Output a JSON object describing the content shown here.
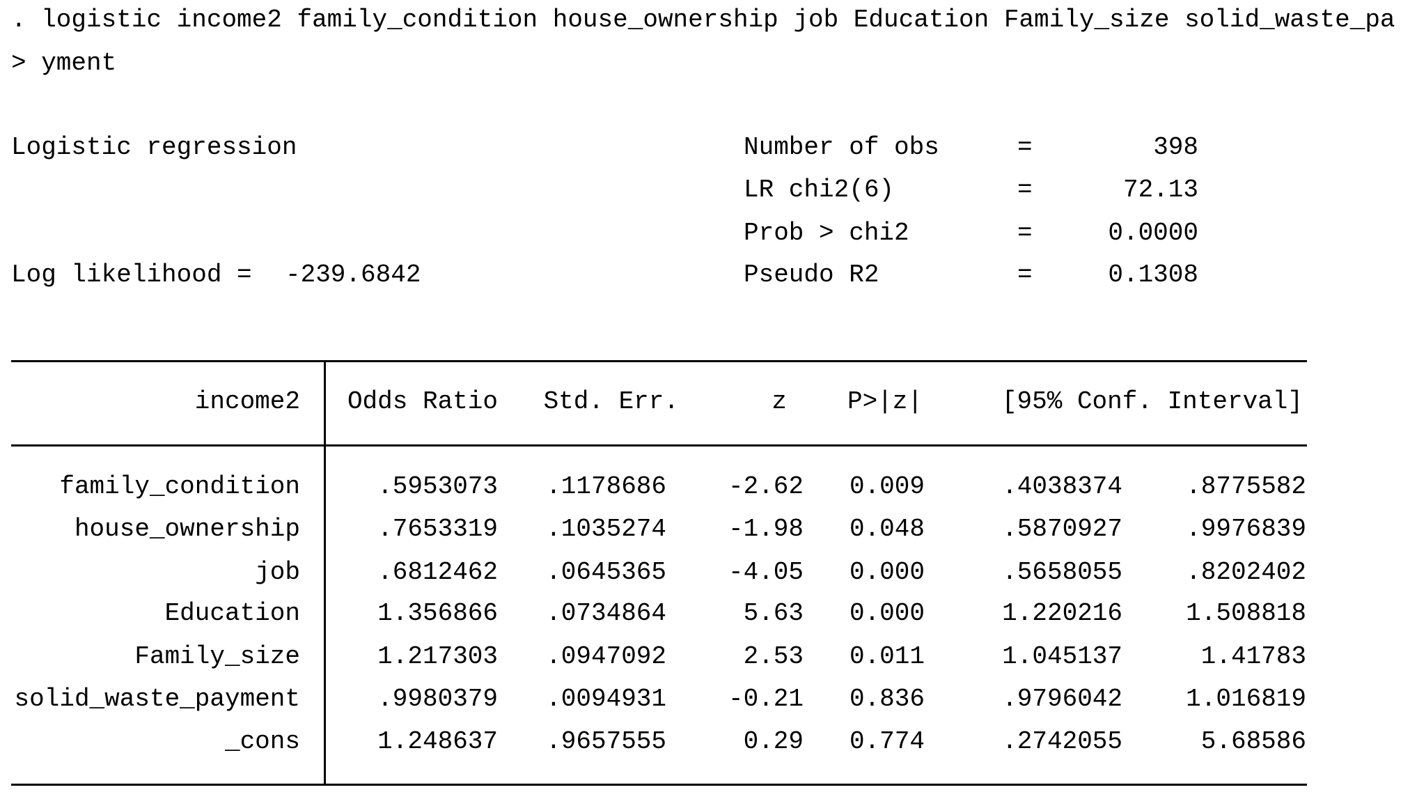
{
  "command": [
    ". logistic income2 family_condition house_ownership job Education Family_size solid_waste_pa",
    "> yment"
  ],
  "model_title": "Logistic regression",
  "log_likelihood": {
    "label": "Log likelihood =",
    "value": "-239.6842"
  },
  "stats": [
    {
      "label": "Number of obs",
      "eq": "=",
      "value": "398"
    },
    {
      "label": "LR chi2(6)",
      "eq": "=",
      "value": "72.13"
    },
    {
      "label": "Prob > chi2",
      "eq": "=",
      "value": "0.0000"
    },
    {
      "label": "Pseudo R2",
      "eq": "=",
      "value": "0.1308"
    }
  ],
  "table": {
    "header": [
      "income2",
      "Odds Ratio",
      "Std. Err.",
      "z",
      "P>|z|",
      "[95% Conf. Interval]"
    ],
    "rows": [
      [
        "family_condition",
        ".5953073",
        ".1178686",
        "-2.62",
        "0.009",
        ".4038374",
        ".8775582"
      ],
      [
        "house_ownership",
        ".7653319",
        ".1035274",
        "-1.98",
        "0.048",
        ".5870927",
        ".9976839"
      ],
      [
        "job",
        ".6812462",
        ".0645365",
        "-4.05",
        "0.000",
        ".5658055",
        ".8202402"
      ],
      [
        "Education",
        "1.356866",
        ".0734864",
        "5.63",
        "0.000",
        "1.220216",
        "1.508818"
      ],
      [
        "Family_size",
        "1.217303",
        ".0947092",
        "2.53",
        "0.011",
        "1.045137",
        "1.41783"
      ],
      [
        "solid_waste_payment",
        ".9980379",
        ".0094931",
        "-0.21",
        "0.836",
        ".9796042",
        "1.016819"
      ],
      [
        "_cons",
        "1.248637",
        ".9657555",
        "0.29",
        "0.774",
        ".2742055",
        "5.68586"
      ]
    ]
  }
}
